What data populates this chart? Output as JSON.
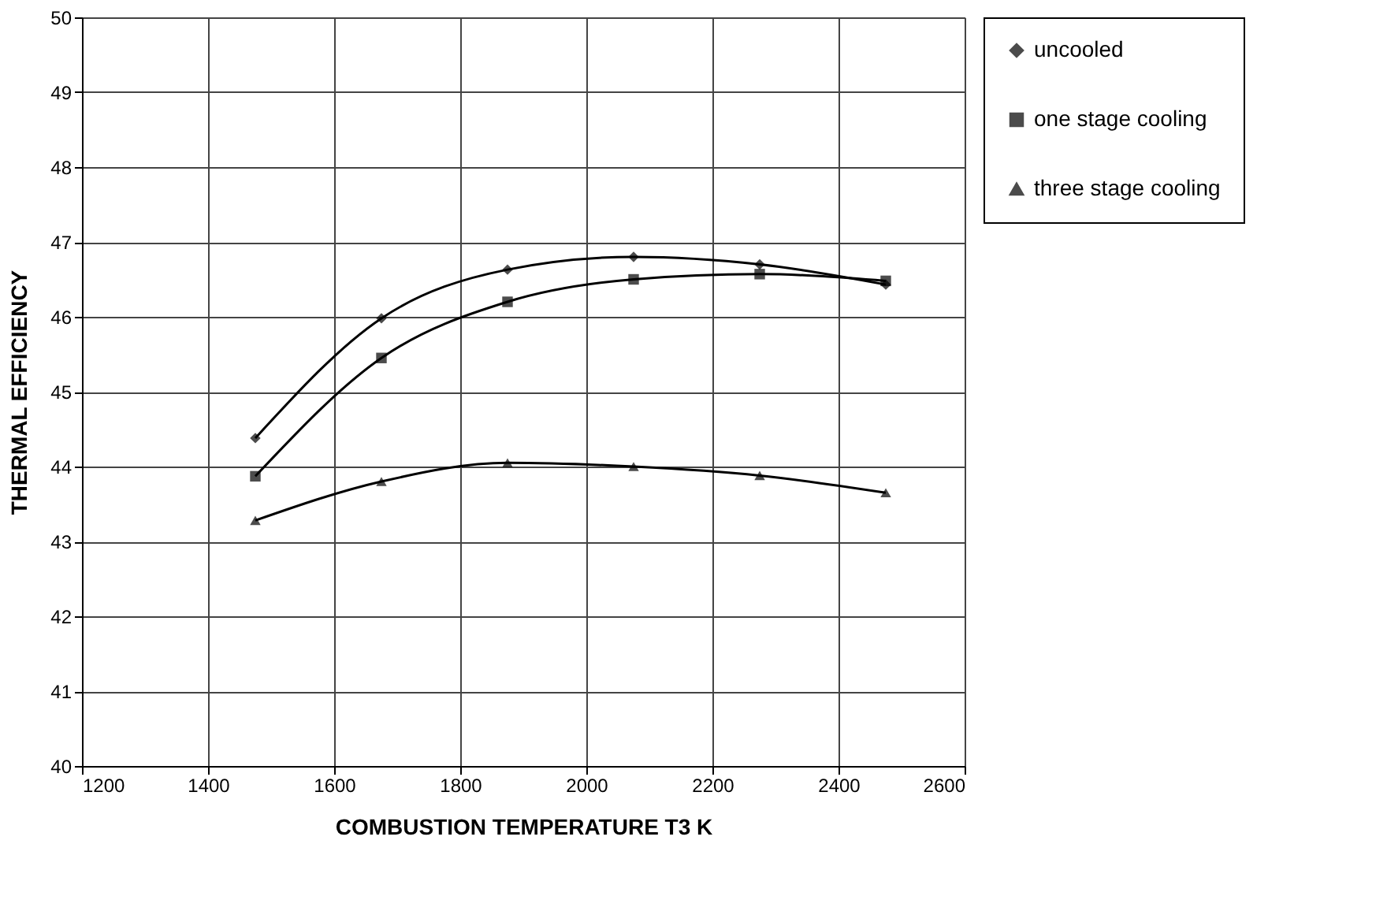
{
  "chart_data": {
    "type": "line",
    "xlabel": "COMBUSTION TEMPERATURE T3 K",
    "ylabel": "THERMAL EFFICIENCY",
    "x": [
      1475,
      1675,
      1875,
      2075,
      2275,
      2475
    ],
    "series": [
      {
        "name": "uncooled",
        "color": "#000000",
        "marker": "diamond",
        "values": [
          44.38,
          45.98,
          46.63,
          46.8,
          46.7,
          46.43
        ]
      },
      {
        "name": "one stage cooling",
        "color": "#000000",
        "marker": "square",
        "values": [
          43.87,
          45.45,
          46.2,
          46.5,
          46.57,
          46.48
        ]
      },
      {
        "name": "three stage cooling",
        "color": "#000000",
        "marker": "triangle",
        "values": [
          43.28,
          43.8,
          44.05,
          44.0,
          43.88,
          43.65
        ]
      }
    ],
    "xlim": [
      1200,
      2600
    ],
    "xticks": [
      1200,
      1400,
      1600,
      1800,
      2000,
      2200,
      2400,
      2600
    ],
    "ylim": [
      40,
      50
    ],
    "yticks": [
      40,
      41,
      42,
      43,
      44,
      45,
      46,
      47,
      48,
      49,
      50
    ],
    "grid": true,
    "legend": "right",
    "line_style": "solid"
  }
}
